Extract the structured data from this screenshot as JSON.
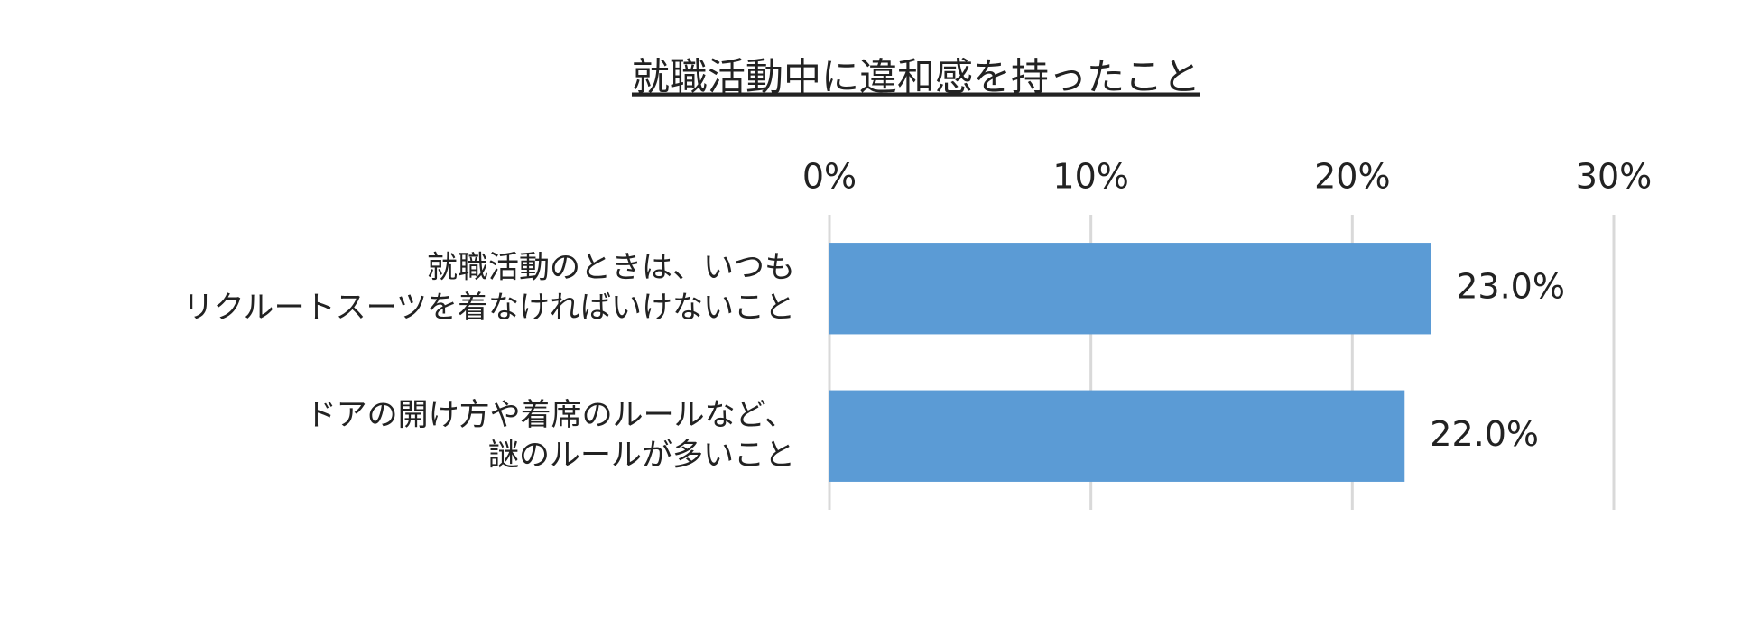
{
  "chart_data": {
    "type": "hbar",
    "title": "就職活動中に違和感を持ったこと",
    "categories": [
      "就職活動のときは、いつも\nリクルートスーツを着なければいけないこと",
      "ドアの開け方や着席のルールなど、\n謎のルールが多いこと"
    ],
    "values": [
      23.0,
      22.0
    ],
    "value_labels": [
      "23.0%",
      "22.0%"
    ],
    "color": "#5b9bd5",
    "xlim": [
      0,
      30
    ],
    "xticks": [
      {
        "value": 0,
        "label": "0%"
      },
      {
        "value": 10,
        "label": "10%"
      },
      {
        "value": 20,
        "label": "20%"
      },
      {
        "value": 30,
        "label": "30%"
      }
    ],
    "grid": true
  }
}
